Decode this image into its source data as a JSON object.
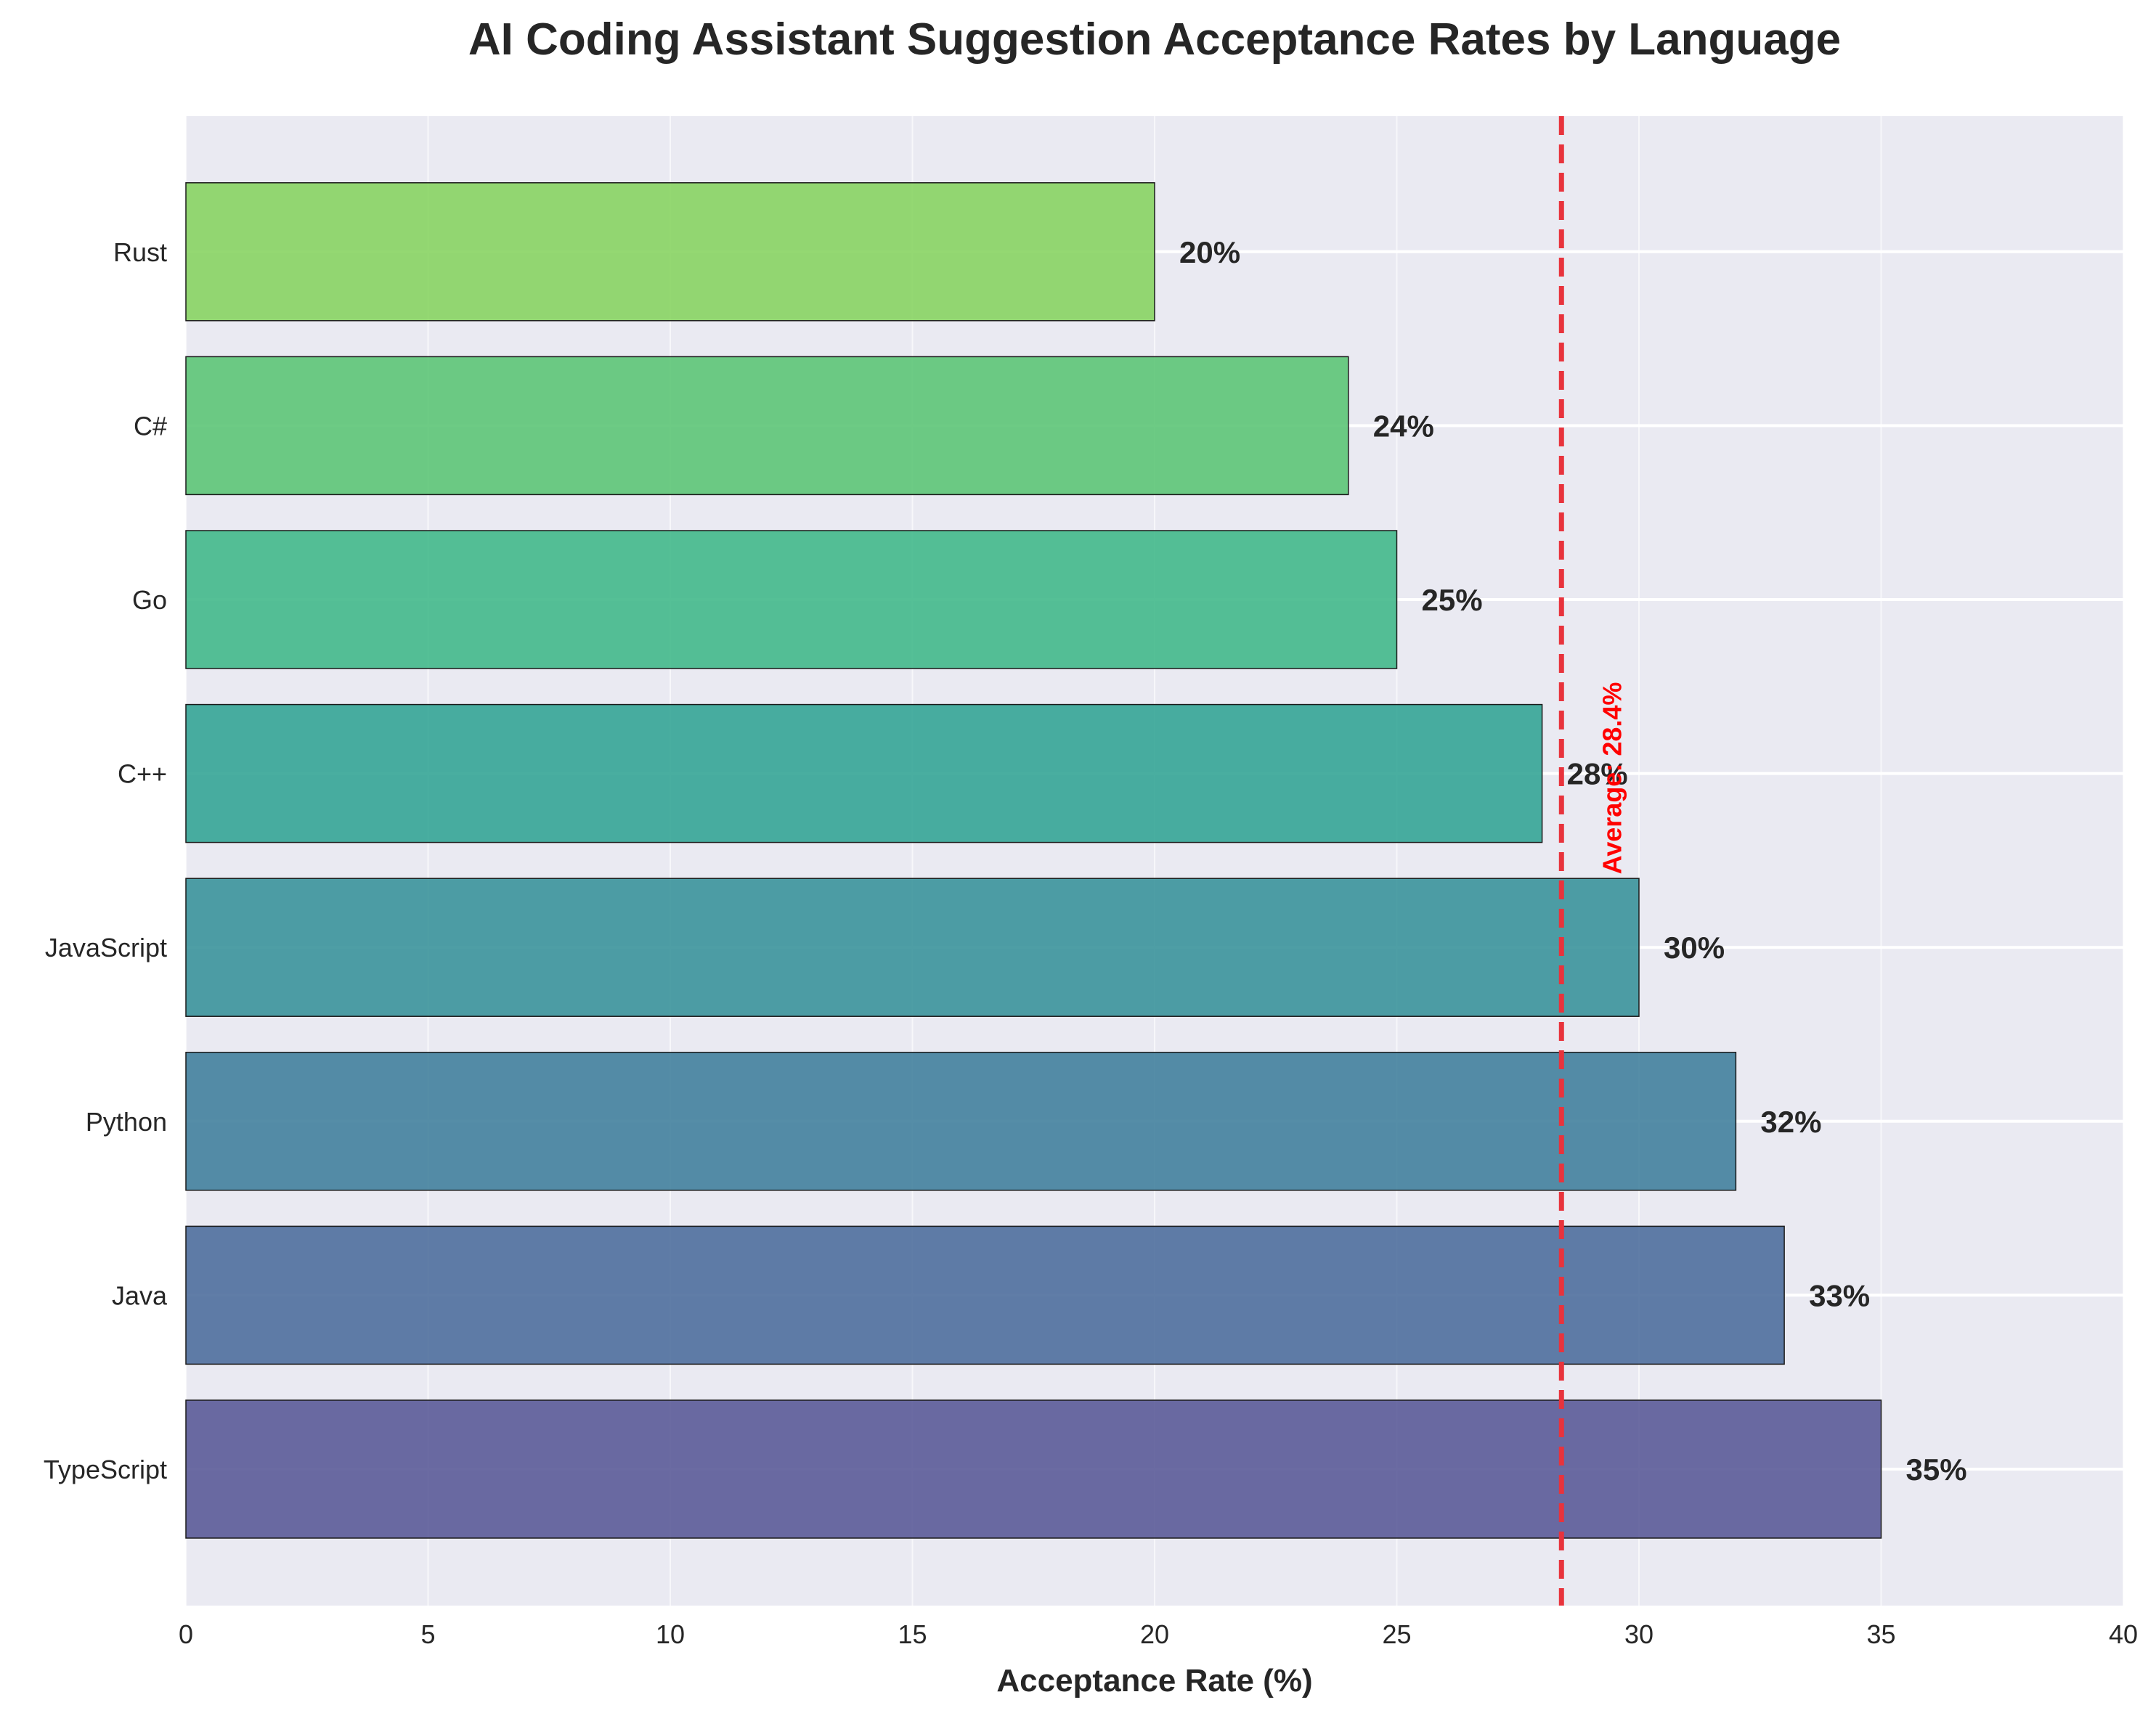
{
  "chart_data": {
    "type": "bar",
    "orientation": "horizontal",
    "title": "AI Coding Assistant Suggestion Acceptance Rates by Language",
    "xlabel": "Acceptance Rate (%)",
    "ylabel": "",
    "xlim": [
      0,
      40
    ],
    "xticks": [
      0,
      5,
      10,
      15,
      20,
      25,
      30,
      35,
      40
    ],
    "grid": true,
    "categories": [
      "TypeScript",
      "Java",
      "Python",
      "JavaScript",
      "C++",
      "Go",
      "C#",
      "Rust"
    ],
    "values": [
      35,
      33,
      32,
      30,
      28,
      25,
      24,
      20
    ],
    "value_labels": [
      "35%",
      "33%",
      "32%",
      "30%",
      "28%",
      "25%",
      "24%",
      "20%"
    ],
    "bar_colors": [
      "#5b5b98",
      "#4f6f9d",
      "#43819d",
      "#3b949b",
      "#35a596",
      "#42b98b",
      "#5dc577",
      "#88d463"
    ],
    "average": {
      "value": 28.4,
      "label": "Average: 28.4%",
      "color": "#e8333c"
    },
    "background_color": "#eaeaf2"
  }
}
